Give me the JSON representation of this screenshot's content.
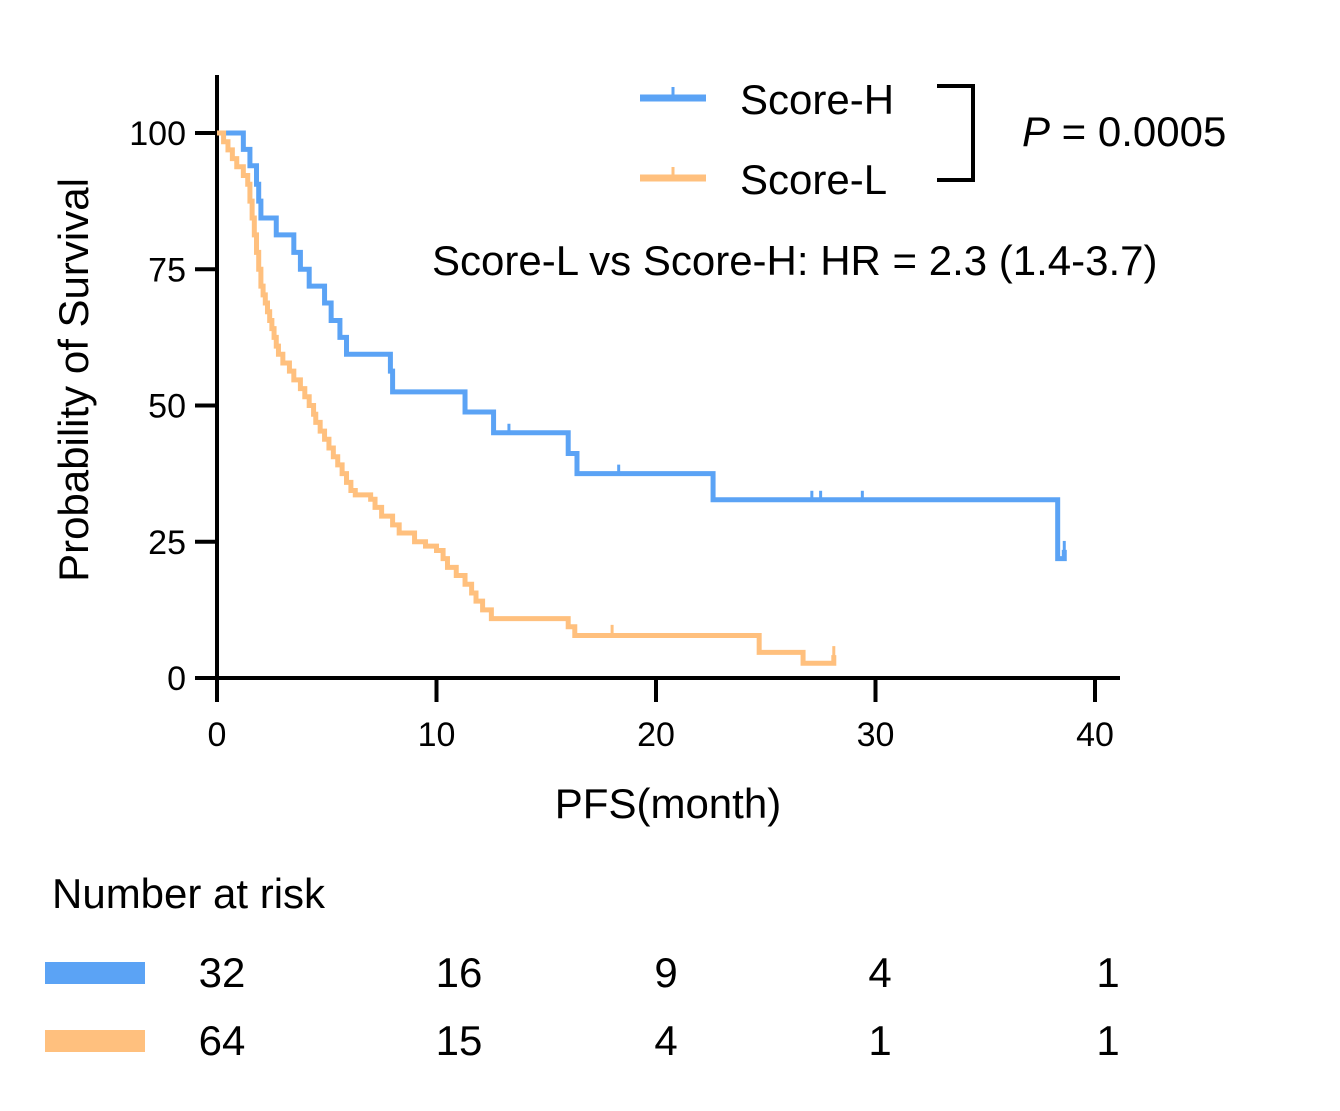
{
  "chart_data": {
    "type": "line",
    "subtype": "kaplan-meier",
    "xlabel": "PFS(month)",
    "ylabel": "Probability of Survival",
    "xlim": [
      0,
      40
    ],
    "ylim": [
      0,
      100
    ],
    "x_ticks": [
      0,
      10,
      20,
      30,
      40
    ],
    "y_ticks": [
      0,
      25,
      50,
      75,
      100
    ],
    "grid": false,
    "legend_position": "top-right",
    "p_value": {
      "prefix": "P",
      "rest": " = 0.0005"
    },
    "hazard_ratio_text": "Score-L vs Score-H: HR = 2.3 (1.4-3.7)",
    "series": [
      {
        "name": "Score-H",
        "color": "#5ba3f5",
        "steps": [
          [
            0,
            100
          ],
          [
            1.1,
            100
          ],
          [
            1.2,
            97
          ],
          [
            1.5,
            94
          ],
          [
            1.8,
            90.6
          ],
          [
            1.9,
            87.5
          ],
          [
            2.0,
            84.4
          ],
          [
            2.7,
            81.3
          ],
          [
            3.5,
            78.1
          ],
          [
            3.8,
            75
          ],
          [
            4.0,
            75
          ],
          [
            4.2,
            71.9
          ],
          [
            4.9,
            68.8
          ],
          [
            5.2,
            65.6
          ],
          [
            5.6,
            62.5
          ],
          [
            5.9,
            59.4
          ],
          [
            6.6,
            59.4
          ],
          [
            7.9,
            56.3
          ],
          [
            8.0,
            52.5
          ],
          [
            11.3,
            48.8
          ],
          [
            12.6,
            45
          ],
          [
            16.0,
            41.2
          ],
          [
            16.4,
            37.5
          ],
          [
            22.6,
            32.7
          ],
          [
            38.3,
            21.9
          ],
          [
            38.6,
            23.5
          ]
        ],
        "censored": [
          [
            13.3,
            45
          ],
          [
            18.3,
            37.5
          ],
          [
            27.1,
            32.7
          ],
          [
            27.5,
            32.7
          ],
          [
            29.4,
            32.7
          ],
          [
            38.6,
            23.5
          ]
        ]
      },
      {
        "name": "Score-L",
        "color": "#ffc07e",
        "steps": [
          [
            0,
            100
          ],
          [
            0.3,
            98.4
          ],
          [
            0.5,
            96.9
          ],
          [
            0.7,
            95.3
          ],
          [
            0.9,
            93.8
          ],
          [
            1.2,
            92.2
          ],
          [
            1.4,
            90.6
          ],
          [
            1.5,
            87.5
          ],
          [
            1.6,
            84.4
          ],
          [
            1.7,
            81.3
          ],
          [
            1.8,
            78.1
          ],
          [
            1.9,
            75
          ],
          [
            2.0,
            71.9
          ],
          [
            2.1,
            70.3
          ],
          [
            2.2,
            68.8
          ],
          [
            2.3,
            67.2
          ],
          [
            2.4,
            65.6
          ],
          [
            2.5,
            64.1
          ],
          [
            2.6,
            62.5
          ],
          [
            2.7,
            60.9
          ],
          [
            2.8,
            59.4
          ],
          [
            3.0,
            57.8
          ],
          [
            3.3,
            56.3
          ],
          [
            3.5,
            54.7
          ],
          [
            3.8,
            53.1
          ],
          [
            4.0,
            51.6
          ],
          [
            4.2,
            50
          ],
          [
            4.4,
            48.4
          ],
          [
            4.5,
            46.9
          ],
          [
            4.7,
            45.3
          ],
          [
            4.9,
            43.8
          ],
          [
            5.1,
            42.2
          ],
          [
            5.3,
            40.6
          ],
          [
            5.5,
            39.1
          ],
          [
            5.7,
            37.5
          ],
          [
            5.9,
            35.9
          ],
          [
            6.1,
            34.4
          ],
          [
            6.3,
            33.6
          ],
          [
            7.0,
            32.8
          ],
          [
            7.2,
            31.3
          ],
          [
            7.5,
            29.7
          ],
          [
            8.0,
            28.1
          ],
          [
            8.3,
            26.6
          ],
          [
            9.0,
            25
          ],
          [
            9.5,
            24.2
          ],
          [
            10.0,
            23.4
          ],
          [
            10.3,
            21.9
          ],
          [
            10.5,
            20.3
          ],
          [
            10.9,
            18.8
          ],
          [
            11.3,
            17.2
          ],
          [
            11.6,
            15.6
          ],
          [
            11.8,
            14.1
          ],
          [
            12.1,
            12.5
          ],
          [
            12.5,
            10.9
          ],
          [
            14.2,
            10.9
          ],
          [
            16.0,
            9.4
          ],
          [
            16.3,
            7.8
          ],
          [
            24.2,
            7.8
          ],
          [
            24.7,
            4.7
          ],
          [
            26.3,
            4.7
          ],
          [
            26.7,
            2.7
          ],
          [
            27.9,
            2.7
          ],
          [
            28.1,
            4.2
          ]
        ],
        "censored": [
          [
            18.0,
            8.1
          ],
          [
            28.1,
            4.2
          ]
        ]
      }
    ],
    "number_at_risk": {
      "title": "Number at risk",
      "time_points": [
        0,
        10,
        20,
        30,
        40
      ],
      "rows": [
        {
          "series": "Score-H",
          "color": "#5ba3f5",
          "values": [
            "32",
            "16",
            "9",
            "4",
            "1"
          ]
        },
        {
          "series": "Score-L",
          "color": "#ffc07e",
          "values": [
            "64",
            "15",
            "4",
            "1",
            "1"
          ]
        }
      ]
    }
  }
}
